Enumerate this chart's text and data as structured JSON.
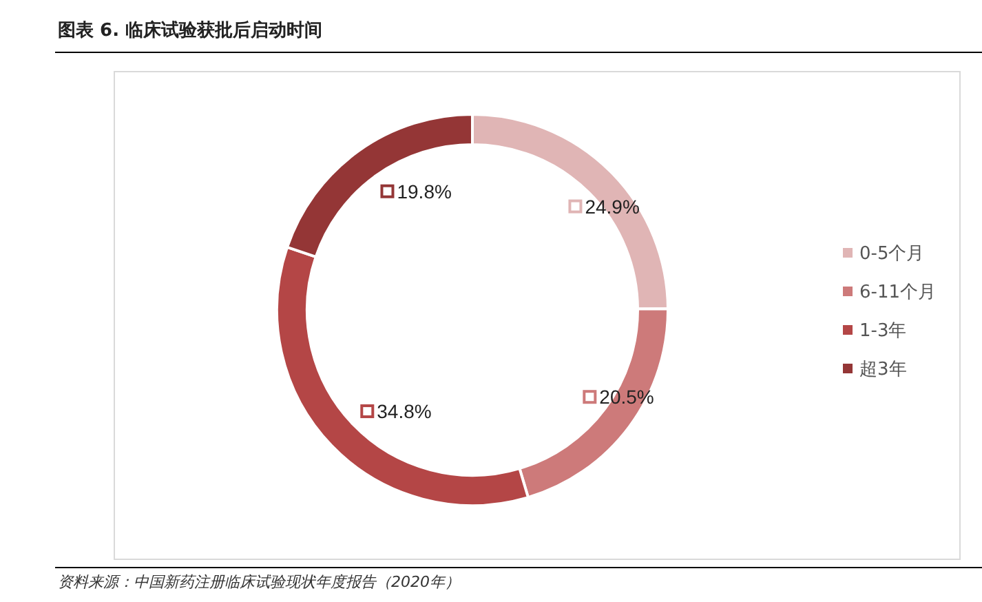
{
  "chart_data": {
    "type": "donut",
    "title": "图表 6. 临床试验获批后启动时间",
    "categories": [
      "0-5个月",
      "6-11个月",
      "1-3年",
      "超3年"
    ],
    "values": [
      24.9,
      20.5,
      34.8,
      19.8
    ],
    "colors": [
      "#e0b5b5",
      "#cd7a7a",
      "#b44646",
      "#943636"
    ],
    "value_labels": [
      "24.9%",
      "20.5%",
      "34.8%",
      "19.8%"
    ],
    "legend": "right",
    "annotations": [
      "资料来源：中国新药注册临床试验现状年度报告（2020年）"
    ]
  }
}
